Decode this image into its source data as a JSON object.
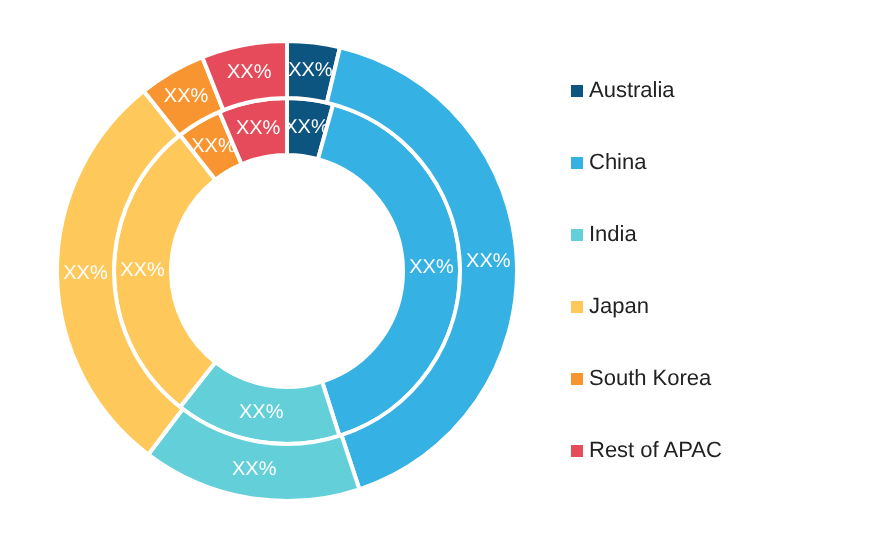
{
  "chart_data": {
    "type": "donut",
    "categories": [
      "Australia",
      "China",
      "India",
      "Japan",
      "South Korea",
      "Rest of APAC"
    ],
    "colors": [
      "#0b5580",
      "#35b1e3",
      "#63cfd8",
      "#ffc85a",
      "#f99530",
      "#e54b5a"
    ],
    "series": [
      {
        "values": [
          4.3,
          40.8,
          15.5,
          28.8,
          4.2,
          6.4
        ],
        "value_labels": [
          "XX%",
          "XX%",
          "XX%",
          "XX%",
          "XX%",
          "XX%"
        ]
      },
      {
        "values": [
          3.7,
          41.2,
          15.4,
          29.0,
          4.7,
          6.0
        ],
        "value_labels": [
          "XX%",
          "XX%",
          "XX%",
          "XX%",
          "XX%",
          "XX%"
        ]
      }
    ],
    "legend": "right"
  }
}
